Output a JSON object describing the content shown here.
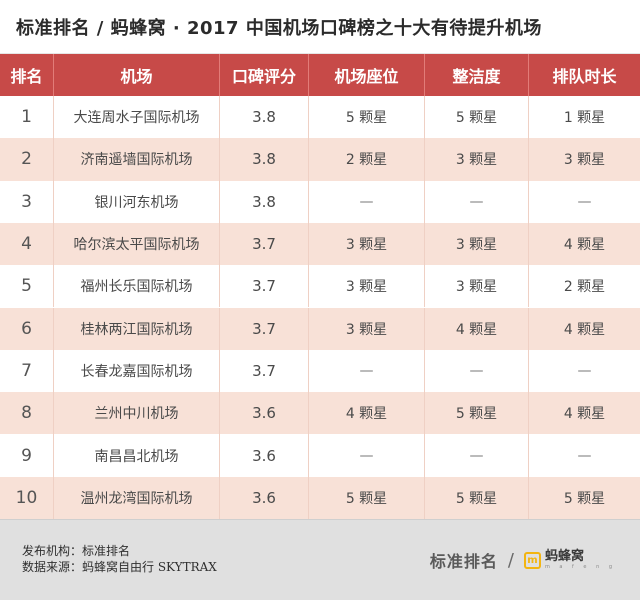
{
  "title": "标准排名 / 蚂蜂窝 · 2017 中国机场口碑榜之十大有待提升机场",
  "chart_data": {
    "type": "table",
    "columns": [
      "排名",
      "机场",
      "口碑评分",
      "机场座位",
      "整洁度",
      "排队时长"
    ],
    "rows": [
      [
        "1",
        "大连周水子国际机场",
        "3.8",
        "5 颗星",
        "5 颗星",
        "1 颗星"
      ],
      [
        "2",
        "济南遥墙国际机场",
        "3.8",
        "2 颗星",
        "3 颗星",
        "3 颗星"
      ],
      [
        "3",
        "银川河东机场",
        "3.8",
        "—",
        "—",
        "—"
      ],
      [
        "4",
        "哈尔滨太平国际机场",
        "3.7",
        "3 颗星",
        "3 颗星",
        "4 颗星"
      ],
      [
        "5",
        "福州长乐国际机场",
        "3.7",
        "3 颗星",
        "3 颗星",
        "2 颗星"
      ],
      [
        "6",
        "桂林两江国际机场",
        "3.7",
        "3 颗星",
        "4 颗星",
        "4 颗星"
      ],
      [
        "7",
        "长春龙嘉国际机场",
        "3.7",
        "—",
        "—",
        "—"
      ],
      [
        "8",
        "兰州中川机场",
        "3.6",
        "4 颗星",
        "5 颗星",
        "4 颗星"
      ],
      [
        "9",
        "南昌昌北机场",
        "3.6",
        "—",
        "—",
        "—"
      ],
      [
        "10",
        "温州龙湾国际机场",
        "3.6",
        "5 颗星",
        "5 颗星",
        "5 颗星"
      ]
    ]
  },
  "footer": {
    "publisher": "发布机构：标准排名",
    "source": "数据来源：蚂蜂窝自由行 SKYTRAX",
    "brand_left": "标准排名",
    "brand_sep": "/",
    "brand_right": "蚂蜂窝",
    "brand_right_sub": "m a f e n g"
  },
  "colors": {
    "header_bg": "#c74a48",
    "row_alt_bg": "#f8e1d7",
    "footer_bg": "#e0e0e0",
    "brand_accent": "#f3b511"
  }
}
